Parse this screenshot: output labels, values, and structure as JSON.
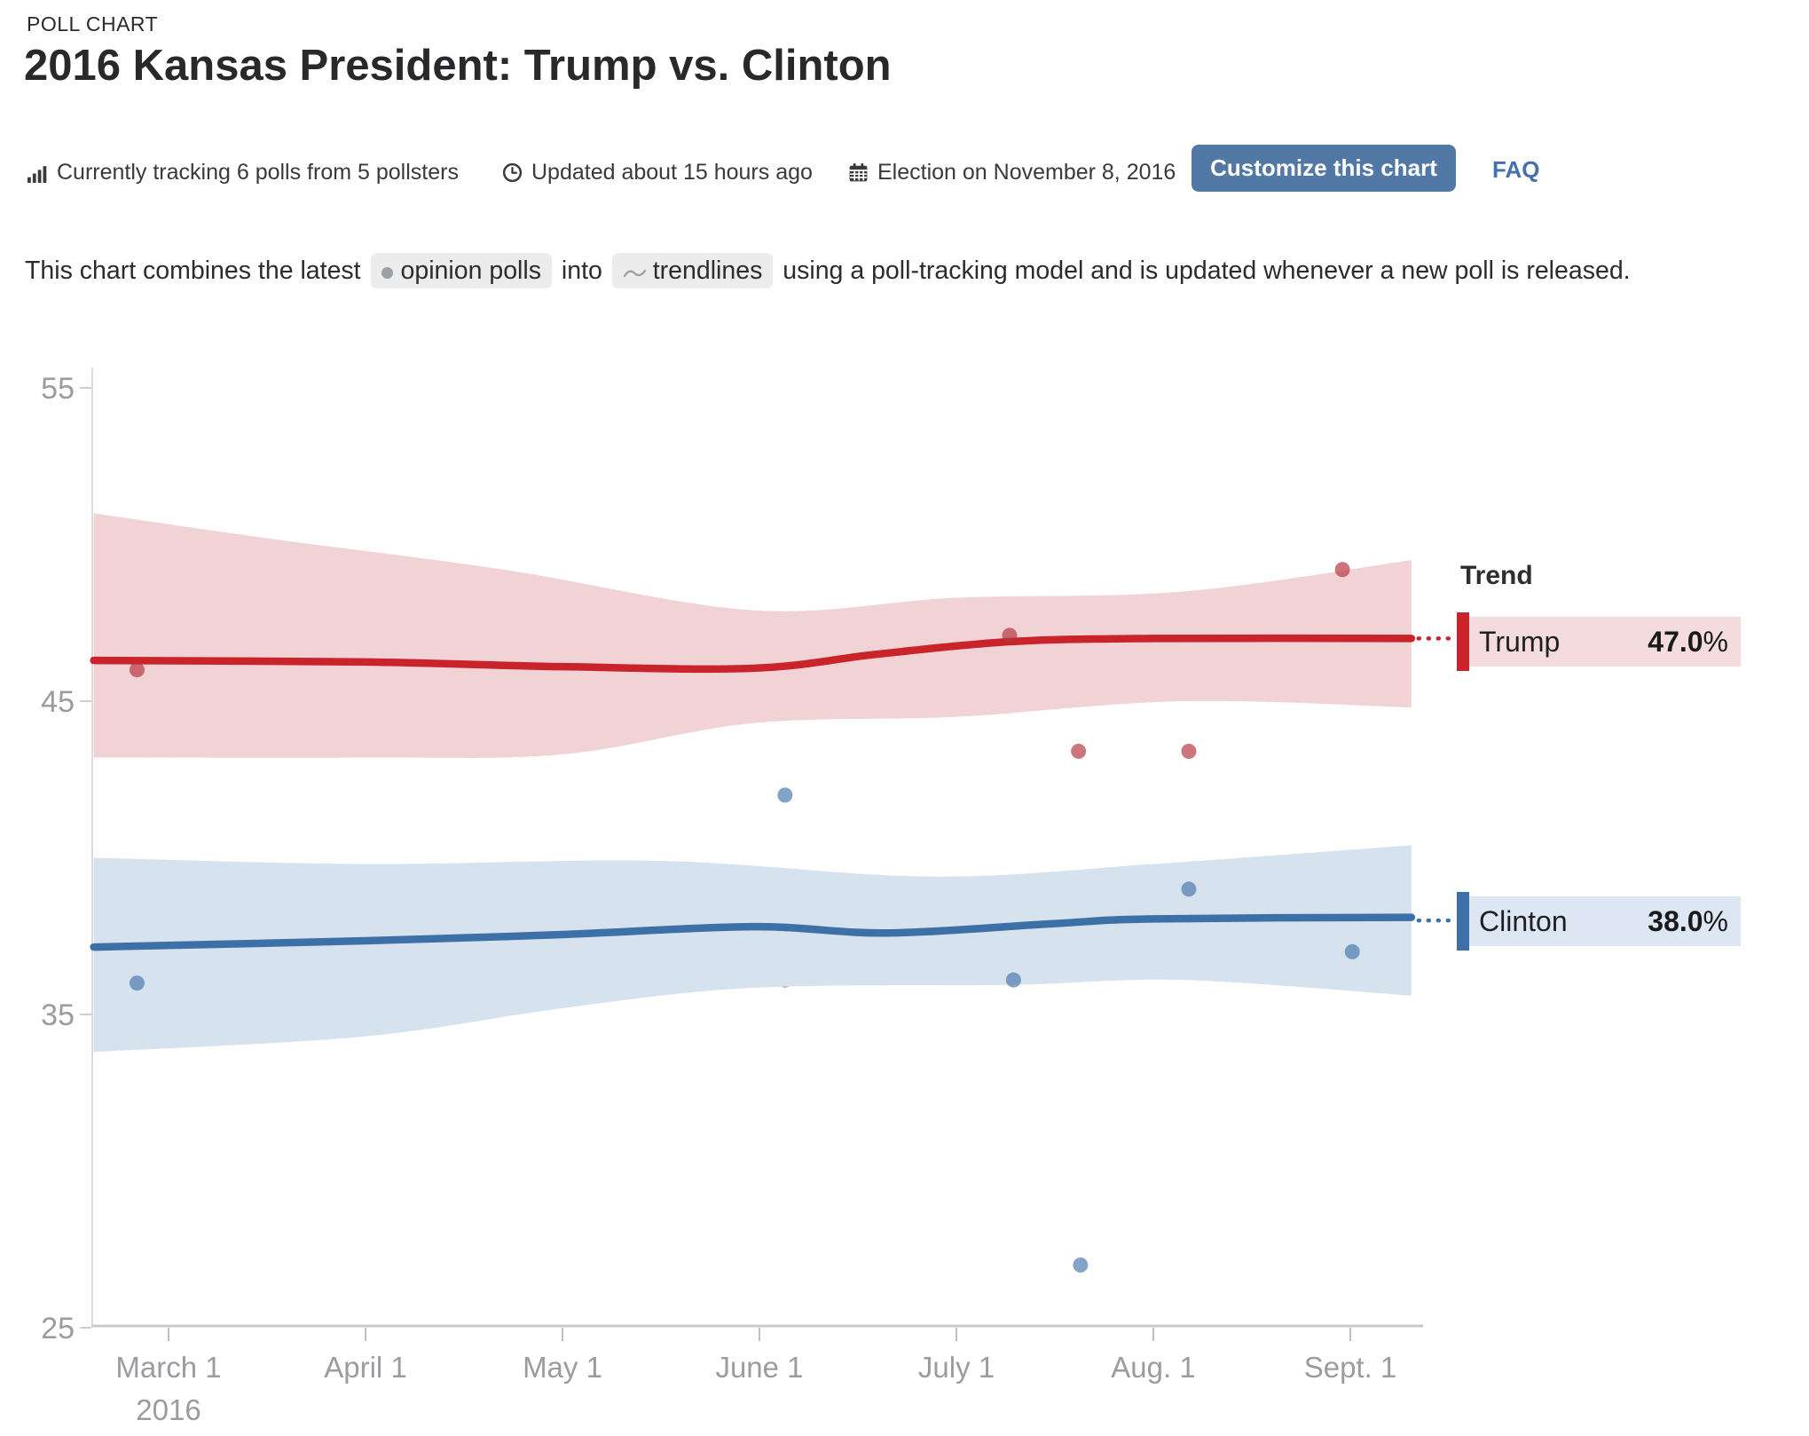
{
  "header": {
    "kicker": "POLL CHART",
    "title": "2016 Kansas President: Trump vs. Clinton",
    "meta": [
      {
        "icon": "bar-chart-icon",
        "text": "Currently tracking 6 polls from 5 pollsters"
      },
      {
        "icon": "clock-icon",
        "text": "Updated about 15 hours ago"
      },
      {
        "icon": "calendar-icon",
        "text": "Election on November 8, 2016"
      }
    ],
    "customize_button_label": "Customize this chart",
    "faq_label": "FAQ"
  },
  "description": {
    "part1": "This chart combines the latest",
    "pill1": "opinion polls",
    "part2": "into",
    "pill2": "trendlines",
    "part3": "using a poll-tracking model and is updated whenever a new poll is released."
  },
  "legend": {
    "heading": "Trend",
    "items": [
      {
        "label": "Trump",
        "value": "47.0",
        "suffix": "%"
      },
      {
        "label": "Clinton",
        "value": "38.0",
        "suffix": "%"
      }
    ]
  },
  "colors": {
    "trump_line": "#c9232b",
    "trump_band": "#f1d3d6",
    "trump_dot": "#b4333e",
    "clinton_line": "#3e70a8",
    "clinton_band": "#d7e2ef",
    "clinton_dot": "#4a78ac",
    "legend_trump_bg": "#f4dcde",
    "legend_clinton_bg": "#dde7f3",
    "button_bg": "#5278a5",
    "link": "#4271ae",
    "axis_text": "#9b9ca0",
    "axis_line": "#c8c8c8"
  },
  "chart_data": {
    "type": "line",
    "title": "2016 Kansas President: Trump vs. Clinton",
    "x_axis": {
      "unit": "months after March 1, 2016",
      "tick_positions": [
        0,
        1,
        2,
        3,
        4,
        5,
        6
      ],
      "tick_labels": [
        "March 1",
        "April 1",
        "May 1",
        "June 1",
        "July 1",
        "Aug. 1",
        "Sept. 1"
      ],
      "year_label": "2016",
      "range": [
        -0.38,
        6.31
      ]
    },
    "y_axis": {
      "ticks": [
        55,
        45,
        35,
        25
      ],
      "range": [
        25,
        57
      ]
    },
    "legend_position": "right",
    "grid": false,
    "series": [
      {
        "name": "Trump",
        "end_value": 47.0,
        "trend": [
          [
            -0.38,
            46.3
          ],
          [
            1.0,
            46.25
          ],
          [
            2.0,
            46.1
          ],
          [
            2.97,
            46.05
          ],
          [
            3.6,
            46.5
          ],
          [
            4.28,
            46.9
          ],
          [
            5.0,
            47.0
          ],
          [
            6.31,
            47.0
          ]
        ],
        "band_upper": [
          [
            -0.38,
            51.0
          ],
          [
            0.5,
            50.2
          ],
          [
            1.7,
            49.2
          ],
          [
            2.97,
            47.9
          ],
          [
            4.0,
            48.3
          ],
          [
            5.15,
            48.5
          ],
          [
            6.31,
            49.5
          ]
        ],
        "band_lower": [
          [
            -0.38,
            43.2
          ],
          [
            1.0,
            43.2
          ],
          [
            2.0,
            43.3
          ],
          [
            2.97,
            44.3
          ],
          [
            4.0,
            44.5
          ],
          [
            5.15,
            45.0
          ],
          [
            6.31,
            44.8
          ]
        ],
        "polls": [
          [
            -0.16,
            46.0
          ],
          [
            3.13,
            36.1
          ],
          [
            4.27,
            47.1
          ],
          [
            4.62,
            43.4
          ],
          [
            5.18,
            43.4
          ],
          [
            5.96,
            49.2
          ]
        ]
      },
      {
        "name": "Clinton",
        "end_value": 38.0,
        "trend": [
          [
            -0.38,
            37.15
          ],
          [
            1.0,
            37.35
          ],
          [
            2.0,
            37.55
          ],
          [
            2.97,
            37.8
          ],
          [
            3.65,
            37.6
          ],
          [
            4.5,
            37.9
          ],
          [
            5.0,
            38.05
          ],
          [
            6.31,
            38.1
          ]
        ],
        "band_upper": [
          [
            -0.38,
            40.0
          ],
          [
            1.0,
            39.8
          ],
          [
            2.5,
            39.9
          ],
          [
            3.87,
            39.4
          ],
          [
            5.0,
            39.8
          ],
          [
            6.31,
            40.4
          ]
        ],
        "band_lower": [
          [
            -0.38,
            33.8
          ],
          [
            1.0,
            34.3
          ],
          [
            2.0,
            35.2
          ],
          [
            2.97,
            35.85
          ],
          [
            4.3,
            35.95
          ],
          [
            5.15,
            36.1
          ],
          [
            6.31,
            35.6
          ]
        ],
        "polls": [
          [
            -0.16,
            36.0
          ],
          [
            3.13,
            42.0
          ],
          [
            4.29,
            36.1
          ],
          [
            4.63,
            27.0
          ],
          [
            5.18,
            39.0
          ],
          [
            6.01,
            37.0
          ]
        ]
      }
    ]
  }
}
